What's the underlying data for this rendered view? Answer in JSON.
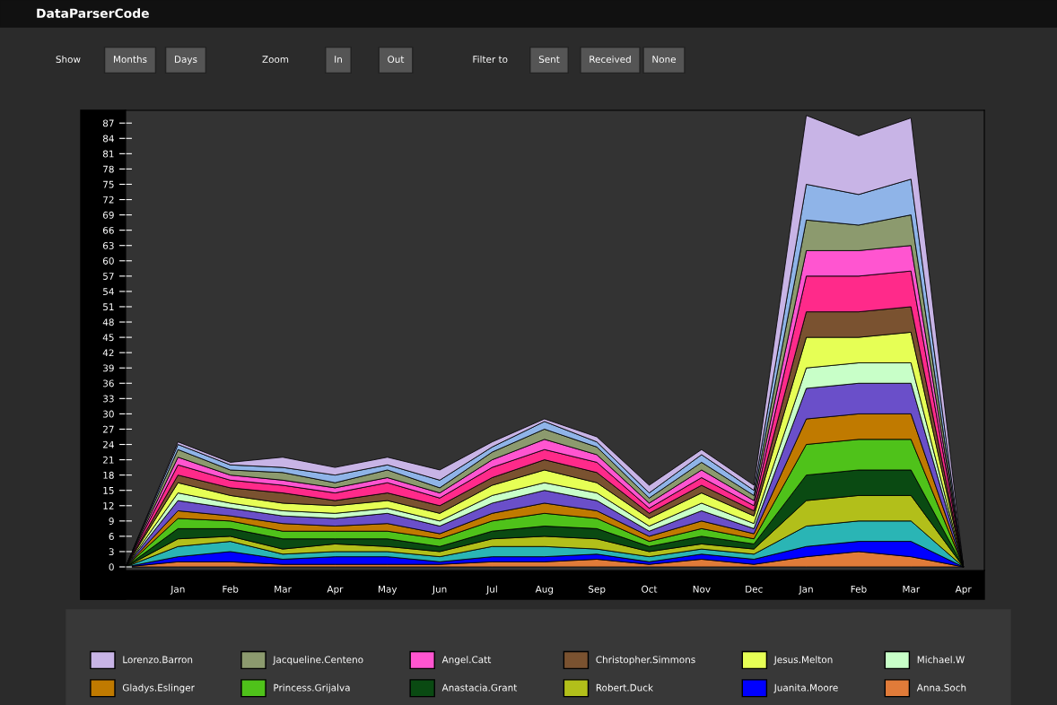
{
  "chart_data": {
    "type": "area",
    "stacked": true,
    "title": "DataParserCode",
    "annotations": [
      "Show",
      "Months",
      "Days",
      "Zoom",
      "In",
      "Out",
      "Filter to",
      "Sent",
      "Received",
      "None"
    ],
    "categories": [
      null,
      "Jan",
      "Feb",
      "Mar",
      "Apr",
      "May",
      "Jun",
      "Jul",
      "Aug",
      "Sep",
      "Oct",
      "Nov",
      "Dec",
      "Jan",
      "Feb",
      "Mar",
      "Apr"
    ],
    "ylim": [
      -0.7,
      89.5
    ],
    "yticks": [
      0,
      3,
      6,
      9,
      12,
      15,
      18,
      21,
      24,
      27,
      30,
      33,
      36,
      39,
      42,
      45,
      48,
      51,
      54,
      57,
      60,
      63,
      66,
      69,
      72,
      75,
      78,
      81,
      84,
      87
    ],
    "grid": false,
    "legend": "bottom",
    "series": [
      {
        "name": "Anna.Soch",
        "color": "#e07b39",
        "values": [
          0,
          1,
          1,
          0.5,
          0.5,
          0.5,
          0.5,
          1,
          1,
          1.5,
          0.5,
          1.5,
          0.5,
          2,
          3,
          2,
          0
        ]
      },
      {
        "name": "Juanita.Moore",
        "color": "#0000ff",
        "values": [
          0,
          1,
          2,
          1,
          1.5,
          1.5,
          0.5,
          1,
          1,
          1,
          0.5,
          1,
          1,
          2,
          2,
          3,
          0
        ]
      },
      {
        "color": "#2ab5b5",
        "values": [
          0,
          2,
          2,
          1,
          1,
          1,
          1,
          2,
          2,
          1,
          1,
          1,
          1,
          4,
          4,
          4,
          0
        ]
      },
      {
        "name": "Robert.Duck",
        "color": "#b2bf1a",
        "values": [
          0,
          1.5,
          1,
          1,
          1.5,
          1,
          1,
          1.5,
          2,
          2,
          1,
          1,
          1,
          5,
          5,
          5,
          0
        ]
      },
      {
        "name": "Anastacia.Grant",
        "color": "#0a4a12",
        "values": [
          0,
          2,
          1.5,
          2,
          1,
          1.5,
          1,
          1.5,
          2,
          2,
          1,
          1.5,
          1,
          5,
          5,
          5,
          0
        ]
      },
      {
        "name": "Princess.Grijalva",
        "color": "#4fc21a",
        "values": [
          0,
          2,
          1.5,
          1.5,
          1.5,
          1.5,
          1.5,
          2,
          2.5,
          2,
          1,
          1.5,
          1,
          6,
          6,
          6,
          0
        ]
      },
      {
        "name": "Gladys.Eslinger",
        "color": "#c07a00",
        "values": [
          0,
          1.5,
          1,
          1.5,
          1,
          1.5,
          1,
          1.5,
          2,
          1.5,
          1,
          1.5,
          1,
          5,
          5,
          5,
          0
        ]
      },
      {
        "color": "#6a4fc9",
        "values": [
          0,
          2,
          1.5,
          1.5,
          1.5,
          2,
          1.5,
          2,
          2.5,
          2,
          1,
          2,
          1,
          6,
          6,
          6,
          0
        ]
      },
      {
        "name": "Michael.W",
        "color": "#c8ffc8",
        "values": [
          0,
          1.5,
          1,
          1,
          1,
          1,
          1,
          1.5,
          1.5,
          1.5,
          1,
          1.5,
          1,
          4,
          4,
          4,
          0
        ]
      },
      {
        "name": "Jesus.Melton",
        "color": "#e6ff55",
        "values": [
          0,
          2,
          1.5,
          1.5,
          1.5,
          1.5,
          1.5,
          2,
          2.5,
          2,
          1.5,
          2,
          1.5,
          6,
          5,
          6,
          0
        ]
      },
      {
        "name": "Christopher.Simmons",
        "color": "#7a5230",
        "values": [
          0,
          1.5,
          1.5,
          2,
          1,
          1.5,
          1.5,
          1.5,
          2,
          2,
          1,
          1.5,
          1,
          5,
          5,
          5,
          0
        ]
      },
      {
        "color": "#ff2a8a",
        "values": [
          0,
          2,
          1.5,
          1.5,
          1.5,
          2,
          1.5,
          2,
          2,
          2,
          1,
          1.5,
          1,
          7,
          7,
          7,
          0
        ]
      },
      {
        "name": "Angel.Catt",
        "color": "#ff55d0",
        "values": [
          0,
          1.5,
          1,
          1,
          1,
          1,
          1,
          1.5,
          2,
          1.5,
          1,
          1.5,
          1,
          5,
          5,
          5,
          0
        ]
      },
      {
        "name": "Jacqueline.Centeno",
        "color": "#8c9a6e",
        "values": [
          0,
          1.5,
          1,
          1.5,
          1,
          1.5,
          1,
          1.5,
          2,
          1.5,
          1,
          1.5,
          1,
          6,
          5,
          6,
          0
        ]
      },
      {
        "color": "#8fb4e8",
        "values": [
          0,
          1,
          1,
          1,
          1.5,
          1,
          1.5,
          1,
          1.5,
          1,
          1,
          1.5,
          1,
          7,
          6,
          7,
          0
        ]
      },
      {
        "name": "Lorenzo.Barron",
        "color": "#c8b4e6",
        "values": [
          0,
          0.5,
          0.5,
          2,
          1.5,
          1.5,
          2,
          1,
          0.5,
          1,
          1.5,
          1,
          1,
          13.5,
          11.5,
          12,
          0
        ]
      }
    ]
  }
}
